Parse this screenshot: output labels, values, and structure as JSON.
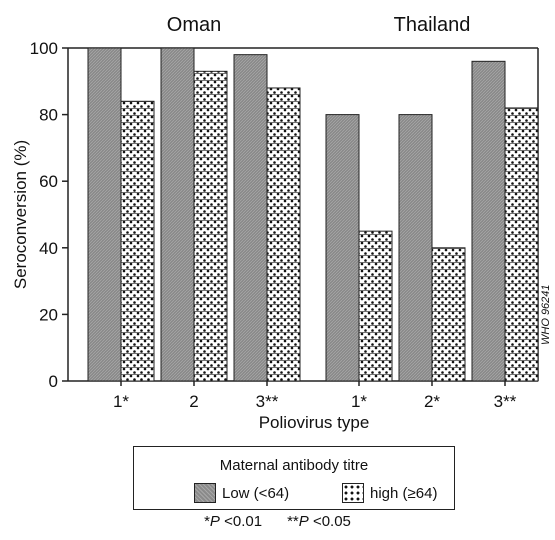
{
  "chart_data": {
    "type": "bar",
    "groups": [
      {
        "name": "Oman",
        "categories": [
          "1*",
          "2",
          "3**"
        ]
      },
      {
        "name": "Thailand",
        "categories": [
          "1*",
          "2*",
          "3**"
        ]
      }
    ],
    "series": [
      {
        "name": "Low (<64)",
        "values": [
          100,
          100,
          98,
          80,
          80,
          96
        ]
      },
      {
        "name": "high (≥64)",
        "values": [
          84,
          93,
          88,
          45,
          40,
          82
        ]
      }
    ],
    "ylabel": "Seroconversion (%)",
    "xlabel": "Poliovirus type",
    "ylim": [
      0,
      100
    ],
    "yticks": [
      0,
      20,
      40,
      60,
      80,
      100
    ],
    "legend_title": "Maternal antibody titre",
    "legend_position": "bottom",
    "colors": {
      "low": "#8a8a8a",
      "high": "#ffffff",
      "outline": "#222222"
    }
  },
  "footnote": {
    "p1_mark": "*",
    "p1_var": "P",
    "p1_value": " <0.01",
    "p2_mark": "**",
    "p2_var": "P",
    "p2_value": " <0.05"
  },
  "watermark": "WHO 96241"
}
